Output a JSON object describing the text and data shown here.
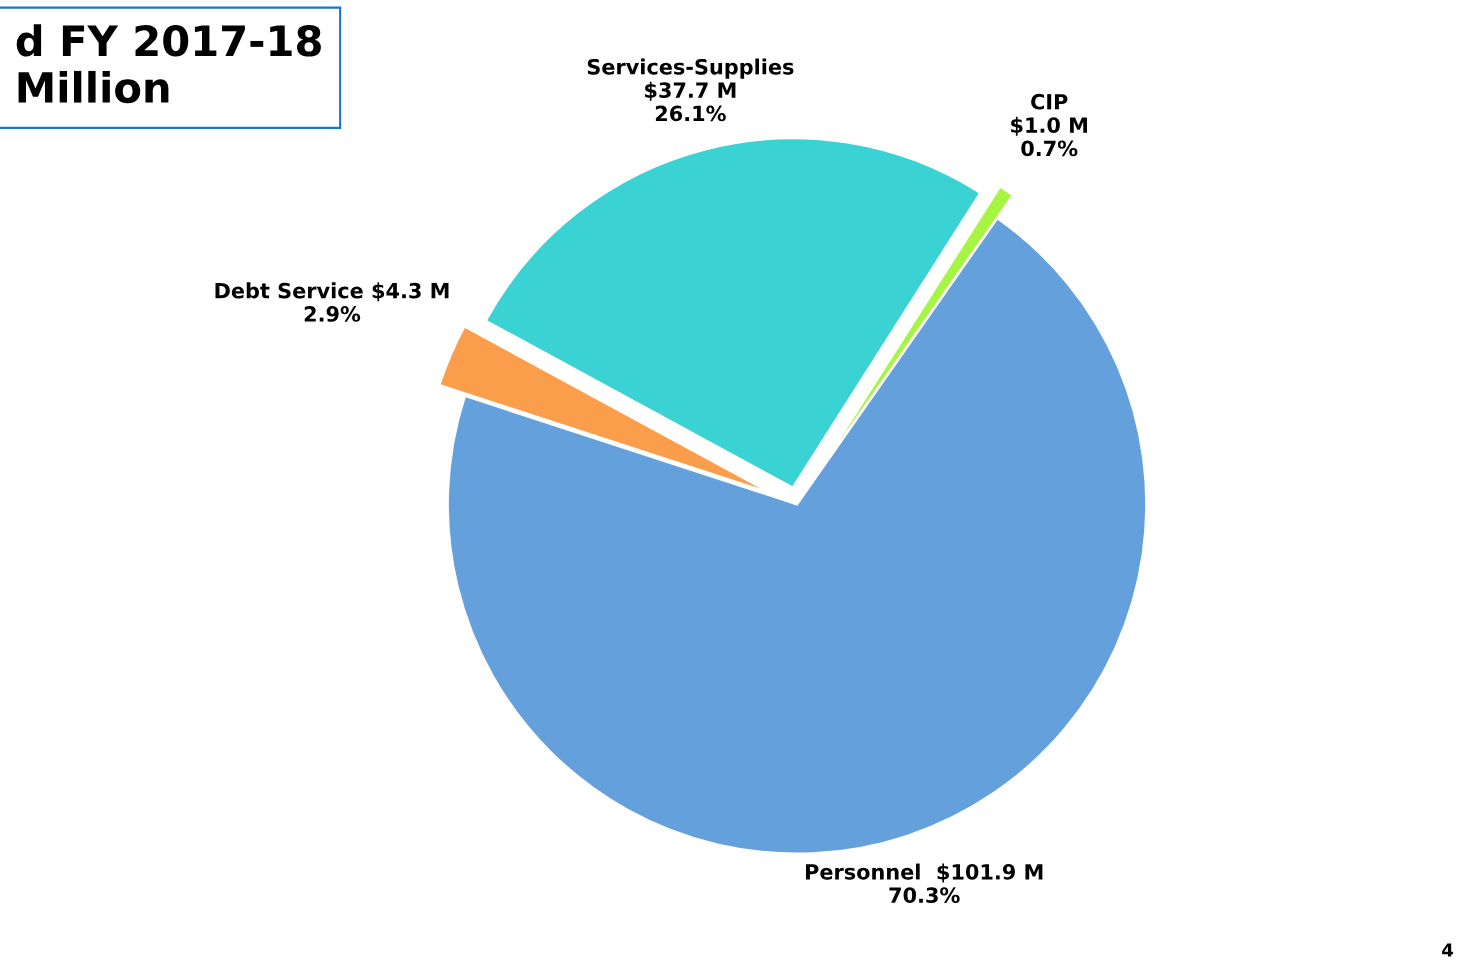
{
  "chart_data": {
    "type": "pie",
    "title": "d FY 2017-18\nMillion",
    "categories": [
      "CIP",
      "Services-Supplies",
      "Debt Service",
      "Personnel"
    ],
    "values": [
      0.7,
      26.1,
      2.9,
      70.3
    ],
    "value_labels": [
      "$1.0 M\n0.7%",
      "$37.7 M\n26.1%",
      "$4.3 M\n2.9%",
      "$101.9 M\n70.3%"
    ],
    "colors": [
      "#a6f542",
      "#3ad2d2",
      "#fb9e4c",
      "#64a0dc"
    ],
    "annotations": [
      "4"
    ]
  }
}
